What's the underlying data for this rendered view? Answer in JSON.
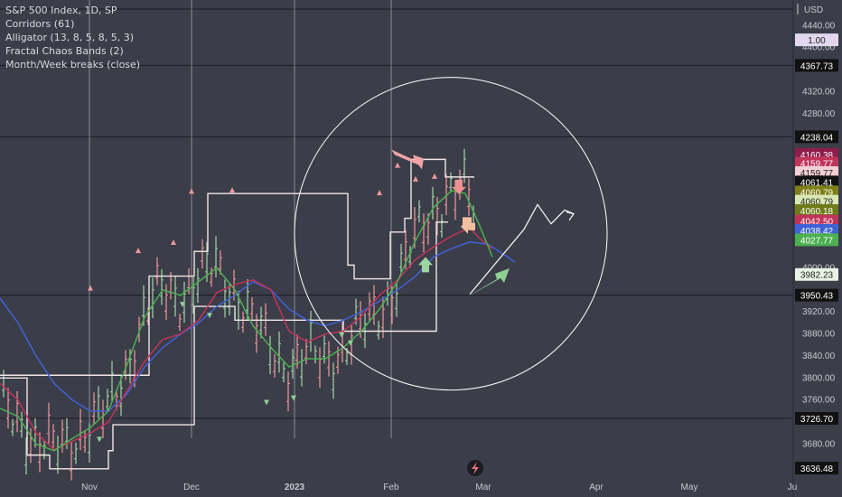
{
  "legend": {
    "symbol": "S&P 500 Index, 1D, SP",
    "studies": [
      "Corridors (61)",
      "Alligator (13, 8, 5, 8, 5, 3)",
      "Fractal Chaos Bands (2)",
      "Month/Week breaks (close)"
    ]
  },
  "scale_label": "USD",
  "colors": {
    "background": "#3b3d49",
    "axis_text": "#c9cad1",
    "jaw": "#3f62d6",
    "teeth": "#c2335a",
    "lips": "#4caf50",
    "corridor": "#f0e6e6",
    "candle_up": "#a5d6a7",
    "candle_down": "#ef9a9a",
    "annotation": "#ffffff",
    "fractal_up": "#e99a9a",
    "fractal_down": "#8fcf94"
  },
  "chart_data": {
    "type": "line",
    "title": "S&P 500 Index, 1D, SP",
    "ylim": [
      3620,
      4470
    ],
    "y_ticks": [
      4440,
      4400,
      4320,
      4280,
      4000,
      3920,
      3880,
      3840,
      3800,
      3760,
      3680
    ],
    "x_ticks": [
      "Nov",
      "Dec",
      "2023",
      "Feb",
      "Mar",
      "Apr",
      "May",
      "Ju"
    ],
    "month_breaks": [
      "Nov",
      "Dec",
      "2023",
      "Feb"
    ],
    "price_labels": [
      {
        "value": "1.00",
        "price": 4414,
        "bg": "#e1d8f0",
        "fg": "#222222"
      },
      {
        "value": "4367.73",
        "price": 4367.73,
        "bg": "#111111",
        "fg": "#ffffff",
        "line": true
      },
      {
        "value": "4238.04",
        "price": 4238.04,
        "bg": "#111111",
        "fg": "#ffffff",
        "line": true
      },
      {
        "value": "4160.38",
        "price": 4206,
        "bg": "#8e1d4c",
        "fg": "#ffffff"
      },
      {
        "value": "4159.77",
        "price": 4190,
        "bg": "#c2335a",
        "fg": "#ffffff"
      },
      {
        "value": "4159.77",
        "price": 4173,
        "bg": "#f3d0d6",
        "fg": "#222222"
      },
      {
        "value": "4061.41",
        "price": 4156,
        "bg": "#111111",
        "fg": "#ffffff"
      },
      {
        "value": "4060.79",
        "price": 4138,
        "bg": "#7f7f1a",
        "fg": "#ffffff"
      },
      {
        "value": "4060.79",
        "price": 4121,
        "bg": "#dbe8b5",
        "fg": "#222222"
      },
      {
        "value": "4060.18",
        "price": 4104,
        "bg": "#6f7b18",
        "fg": "#ffffff"
      },
      {
        "value": "4042.50",
        "price": 4085,
        "bg": "#c2335a",
        "fg": "#ffffff"
      },
      {
        "value": "4038.42",
        "price": 4068,
        "bg": "#3f62d6",
        "fg": "#ffffff"
      },
      {
        "value": "4027.77",
        "price": 4051,
        "bg": "#4caf50",
        "fg": "#ffffff"
      },
      {
        "value": "3982.23",
        "price": 3988,
        "bg": "#e8f3e4",
        "fg": "#222222"
      },
      {
        "value": "3950.43",
        "price": 3950.43,
        "bg": "#111111",
        "fg": "#ffffff",
        "line": true
      },
      {
        "value": "3726.70",
        "price": 3726.7,
        "bg": "#111111",
        "fg": "#ffffff",
        "line": true
      },
      {
        "value": "3636.48",
        "price": 3636.48,
        "bg": "#111111",
        "fg": "#ffffff"
      }
    ],
    "series": [
      {
        "name": "Alligator (13, 8, 5, 8, 5, 3)",
        "role": "jaw",
        "points": [
          [
            0,
            3945
          ],
          [
            20,
            3900
          ],
          [
            40,
            3840
          ],
          [
            60,
            3790
          ],
          [
            80,
            3760
          ],
          [
            100,
            3740
          ],
          [
            120,
            3740
          ],
          [
            140,
            3770
          ],
          [
            160,
            3820
          ],
          [
            180,
            3855
          ],
          [
            200,
            3880
          ],
          [
            220,
            3900
          ],
          [
            240,
            3930
          ],
          [
            260,
            3950
          ],
          [
            280,
            3975
          ],
          [
            300,
            3960
          ],
          [
            320,
            3925
          ],
          [
            340,
            3905
          ],
          [
            360,
            3895
          ],
          [
            380,
            3905
          ],
          [
            400,
            3920
          ],
          [
            420,
            3940
          ],
          [
            440,
            3960
          ],
          [
            460,
            3985
          ],
          [
            480,
            4020
          ],
          [
            500,
            4035
          ],
          [
            520,
            4047
          ],
          [
            540,
            4043
          ],
          [
            560,
            4022
          ],
          [
            570,
            4010
          ]
        ]
      },
      {
        "name": "Alligator (13, 8, 5, 8, 5, 3)",
        "role": "teeth",
        "points": [
          [
            0,
            3790
          ],
          [
            20,
            3760
          ],
          [
            40,
            3700
          ],
          [
            60,
            3670
          ],
          [
            80,
            3685
          ],
          [
            100,
            3700
          ],
          [
            120,
            3720
          ],
          [
            140,
            3775
          ],
          [
            160,
            3830
          ],
          [
            180,
            3870
          ],
          [
            200,
            3880
          ],
          [
            220,
            3905
          ],
          [
            240,
            3955
          ],
          [
            260,
            3970
          ],
          [
            280,
            3978
          ],
          [
            300,
            3960
          ],
          [
            320,
            3885
          ],
          [
            340,
            3865
          ],
          [
            360,
            3880
          ],
          [
            380,
            3885
          ],
          [
            400,
            3912
          ],
          [
            420,
            3950
          ],
          [
            440,
            3978
          ],
          [
            460,
            4015
          ],
          [
            480,
            4038
          ],
          [
            500,
            4058
          ],
          [
            520,
            4073
          ],
          [
            530,
            4055
          ],
          [
            545,
            4035
          ]
        ]
      },
      {
        "name": "Alligator (13, 8, 5, 8, 5, 3)",
        "role": "lips",
        "points": [
          [
            0,
            3745
          ],
          [
            20,
            3730
          ],
          [
            40,
            3680
          ],
          [
            60,
            3668
          ],
          [
            80,
            3690
          ],
          [
            100,
            3710
          ],
          [
            120,
            3740
          ],
          [
            140,
            3822
          ],
          [
            160,
            3910
          ],
          [
            180,
            3960
          ],
          [
            200,
            3950
          ],
          [
            220,
            3975
          ],
          [
            240,
            4000
          ],
          [
            260,
            3960
          ],
          [
            280,
            3895
          ],
          [
            300,
            3855
          ],
          [
            320,
            3820
          ],
          [
            340,
            3835
          ],
          [
            360,
            3835
          ],
          [
            380,
            3855
          ],
          [
            400,
            3885
          ],
          [
            420,
            3925
          ],
          [
            440,
            3975
          ],
          [
            460,
            4050
          ],
          [
            480,
            4110
          ],
          [
            500,
            4140
          ],
          [
            515,
            4135
          ],
          [
            530,
            4080
          ],
          [
            545,
            4020
          ]
        ]
      }
    ],
    "corridor_bands": [
      {
        "name": "Fractal Chaos Bands (2)",
        "role": "upper",
        "steps": [
          [
            0,
            3805
          ],
          [
            165,
            3805
          ],
          [
            165,
            3985
          ],
          [
            215,
            3985
          ],
          [
            215,
            4030
          ],
          [
            230,
            4030
          ],
          [
            230,
            4135
          ],
          [
            385,
            4135
          ],
          [
            385,
            4005
          ],
          [
            392,
            4005
          ],
          [
            392,
            3980
          ],
          [
            432,
            3980
          ],
          [
            432,
            4065
          ],
          [
            448,
            4065
          ],
          [
            448,
            4090
          ],
          [
            455,
            4090
          ],
          [
            455,
            4197
          ],
          [
            493,
            4197
          ],
          [
            493,
            4165
          ],
          [
            525,
            4165
          ]
        ]
      },
      {
        "name": "Fractal Chaos Bands (2)",
        "role": "lower",
        "steps": [
          [
            0,
            3800
          ],
          [
            30,
            3800
          ],
          [
            30,
            3660
          ],
          [
            55,
            3660
          ],
          [
            55,
            3635
          ],
          [
            120,
            3635
          ],
          [
            120,
            3668
          ],
          [
            125,
            3668
          ],
          [
            125,
            3715
          ],
          [
            215,
            3715
          ],
          [
            215,
            3930
          ],
          [
            260,
            3930
          ],
          [
            260,
            3905
          ],
          [
            380,
            3905
          ],
          [
            380,
            3885
          ],
          [
            483,
            3885
          ],
          [
            483,
            4083
          ],
          [
            496,
            4083
          ]
        ]
      }
    ],
    "fractals_up": [
      [
        153,
        4030
      ],
      [
        212,
        4138
      ],
      [
        257,
        4140
      ],
      [
        420,
        4135
      ],
      [
        440,
        4185
      ],
      [
        460,
        4160
      ],
      [
        481,
        4165
      ],
      [
        100,
        3962
      ],
      [
        192,
        4045
      ]
    ],
    "fractals_down": [
      [
        110,
        3690
      ],
      [
        202,
        3935
      ],
      [
        232,
        3915
      ],
      [
        295,
        3757
      ],
      [
        325,
        3765
      ],
      [
        378,
        3880
      ],
      [
        388,
        3865
      ]
    ],
    "annotations": {
      "circle": {
        "cx_price_x": 499,
        "cy_price": 4062,
        "r_px": 173
      },
      "zigzag": [
        [
          520,
          3952
        ],
        [
          580,
          4070
        ],
        [
          595,
          4115
        ],
        [
          610,
          4080
        ],
        [
          625,
          4105
        ],
        [
          635,
          4098
        ]
      ],
      "arrows": [
        {
          "kind": "down-right",
          "color": "#f2a4a6",
          "at": [
            433,
            4215
          ]
        },
        {
          "kind": "down",
          "color": "#f09090",
          "at": [
            508,
            4160
          ]
        },
        {
          "kind": "left",
          "color": "#f2c0a0",
          "at": [
            516,
            4075
          ]
        },
        {
          "kind": "up",
          "color": "#9ed4a0",
          "at": [
            471,
            4005
          ]
        },
        {
          "kind": "up-right",
          "color": "#8fcf94",
          "at": [
            520,
            3950
          ]
        }
      ]
    }
  }
}
